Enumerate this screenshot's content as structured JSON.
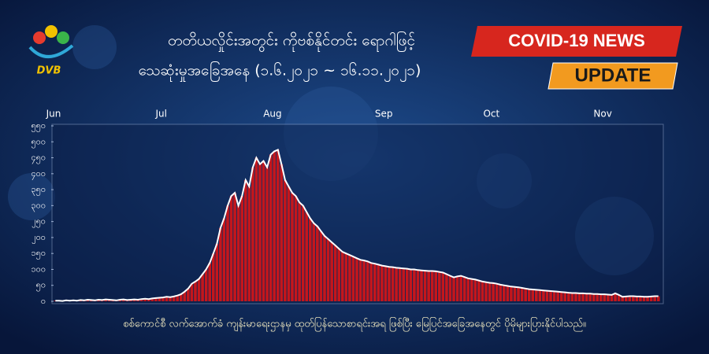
{
  "logo": "DVB",
  "badges": [
    "COVID-19 NEWS",
    "UPDATE"
  ],
  "footer": "စစ်ကောင်စီ လက်အောက်ခံ ကျန်းမာရေးဌာနမှ ထုတ်ပြန်သောစာရင်းအရ ဖြစ်ပြီး မြေပြင်အခြေအနေတွင် ပိုမိုများပြားနိုင်ပါသည်။",
  "chart_data": {
    "type": "bar",
    "title": "တတိယလှိုင်းအတွင်း ကိုဗစ်နိုင်တင်း ရောဂါဖြင့်",
    "subtitle": "သေဆုံးမှုအခြေအနေ (၁.၆.၂၀၂၁ ~ ၁၆.၁၁.၂၀၂၁)",
    "color": "#c4161c",
    "line_color": "#ffffff",
    "categories": [
      "Jun",
      null,
      null,
      null,
      null,
      null,
      null,
      null,
      null,
      null,
      null,
      null,
      null,
      null,
      null,
      null,
      null,
      null,
      null,
      null,
      null,
      null,
      null,
      null,
      null,
      null,
      null,
      null,
      null,
      null,
      "Jul",
      null,
      null,
      null,
      null,
      null,
      null,
      null,
      null,
      null,
      null,
      null,
      null,
      null,
      null,
      null,
      null,
      null,
      null,
      null,
      null,
      null,
      null,
      null,
      null,
      null,
      null,
      null,
      null,
      null,
      null,
      "Aug",
      null,
      null,
      null,
      null,
      null,
      null,
      null,
      null,
      null,
      null,
      null,
      null,
      null,
      null,
      null,
      null,
      null,
      null,
      null,
      null,
      null,
      null,
      null,
      null,
      null,
      null,
      null,
      null,
      null,
      null,
      "Sep",
      null,
      null,
      null,
      null,
      null,
      null,
      null,
      null,
      null,
      null,
      null,
      null,
      null,
      null,
      null,
      null,
      null,
      null,
      null,
      null,
      null,
      null,
      null,
      null,
      null,
      null,
      null,
      null,
      null,
      "Oct",
      null,
      null,
      null,
      null,
      null,
      null,
      null,
      null,
      null,
      null,
      null,
      null,
      null,
      null,
      null,
      null,
      null,
      null,
      null,
      null,
      null,
      null,
      null,
      null,
      null,
      null,
      null,
      null,
      null,
      null,
      "Nov",
      null,
      null,
      null,
      null,
      null,
      null,
      null,
      null,
      null,
      null,
      null,
      null,
      null,
      null,
      null
    ],
    "values": [
      2,
      2,
      1,
      3,
      2,
      3,
      2,
      4,
      3,
      5,
      4,
      3,
      5,
      4,
      6,
      5,
      4,
      3,
      5,
      6,
      4,
      5,
      6,
      5,
      7,
      8,
      7,
      9,
      10,
      11,
      12,
      14,
      13,
      15,
      18,
      22,
      30,
      40,
      55,
      62,
      70,
      85,
      100,
      120,
      150,
      180,
      230,
      260,
      300,
      330,
      340,
      300,
      330,
      380,
      360,
      420,
      450,
      430,
      440,
      420,
      460,
      470,
      475,
      430,
      380,
      360,
      340,
      330,
      310,
      300,
      280,
      260,
      245,
      235,
      220,
      205,
      195,
      185,
      175,
      165,
      155,
      150,
      145,
      140,
      135,
      130,
      128,
      125,
      120,
      118,
      115,
      112,
      110,
      108,
      107,
      105,
      104,
      103,
      102,
      100,
      100,
      98,
      97,
      96,
      95,
      95,
      94,
      92,
      90,
      85,
      80,
      75,
      78,
      80,
      76,
      72,
      70,
      68,
      65,
      62,
      60,
      58,
      57,
      55,
      52,
      50,
      48,
      46,
      45,
      44,
      42,
      40,
      38,
      37,
      36,
      35,
      34,
      33,
      32,
      31,
      30,
      29,
      28,
      27,
      26,
      26,
      25,
      25,
      24,
      24,
      23,
      23,
      22,
      22,
      21,
      20,
      25,
      20,
      14,
      15,
      16,
      16,
      15,
      15,
      14,
      14,
      15,
      16,
      16
    ],
    "ylim": [
      0,
      550
    ],
    "yticks": [
      {
        "value": 0,
        "label": "၀"
      },
      {
        "value": 50,
        "label": "၅၀"
      },
      {
        "value": 100,
        "label": "၁၀၀"
      },
      {
        "value": 150,
        "label": "၁၅၀"
      },
      {
        "value": 200,
        "label": "၂၀၀"
      },
      {
        "value": 250,
        "label": "၂၅၀"
      },
      {
        "value": 300,
        "label": "၃၀၀"
      },
      {
        "value": 350,
        "label": "၃၅၀"
      },
      {
        "value": 400,
        "label": "၄၀၀"
      },
      {
        "value": 450,
        "label": "၄၅၀"
      },
      {
        "value": 500,
        "label": "၅၀၀"
      },
      {
        "value": 550,
        "label": "၅၅၀"
      }
    ],
    "grid": false
  }
}
